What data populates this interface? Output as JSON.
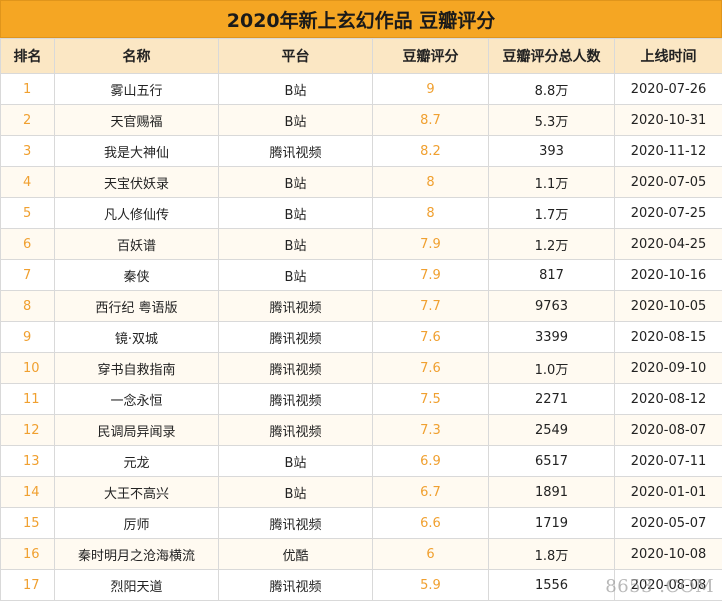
{
  "title": "2020年新上玄幻作品 豆瓣评分",
  "columns": [
    "排名",
    "名称",
    "平台",
    "豆瓣评分",
    "豆瓣评分总人数",
    "上线时间"
  ],
  "rows": [
    [
      "1",
      "雾山五行",
      "B站",
      "9",
      "8.8万",
      "2020-07-26"
    ],
    [
      "2",
      "天官赐福",
      "B站",
      "8.7",
      "5.3万",
      "2020-10-31"
    ],
    [
      "3",
      "我是大神仙",
      "腾讯视频",
      "8.2",
      "393",
      "2020-11-12"
    ],
    [
      "4",
      "天宝伏妖录",
      "B站",
      "8",
      "1.1万",
      "2020-07-05"
    ],
    [
      "5",
      "凡人修仙传",
      "B站",
      "8",
      "1.7万",
      "2020-07-25"
    ],
    [
      "6",
      "百妖谱",
      "B站",
      "7.9",
      "1.2万",
      "2020-04-25"
    ],
    [
      "7",
      "秦侠",
      "B站",
      "7.9",
      "817",
      "2020-10-16"
    ],
    [
      "8",
      "西行纪 粤语版",
      "腾讯视频",
      "7.7",
      "9763",
      "2020-10-05"
    ],
    [
      "9",
      "镜·双城",
      "腾讯视频",
      "7.6",
      "3399",
      "2020-08-15"
    ],
    [
      "10",
      "穿书自救指南",
      "腾讯视频",
      "7.6",
      "1.0万",
      "2020-09-10"
    ],
    [
      "11",
      "一念永恒",
      "腾讯视频",
      "7.5",
      "2271",
      "2020-08-12"
    ],
    [
      "12",
      "民调局异闻录",
      "腾讯视频",
      "7.3",
      "2549",
      "2020-08-07"
    ],
    [
      "13",
      "元龙",
      "B站",
      "6.9",
      "6517",
      "2020-07-11"
    ],
    [
      "14",
      "大王不高兴",
      "B站",
      "6.7",
      "1891",
      "2020-01-01"
    ],
    [
      "15",
      "厉师",
      "腾讯视频",
      "6.6",
      "1719",
      "2020-05-07"
    ],
    [
      "16",
      "秦时明月之沧海横流",
      "优酷",
      "6",
      "1.8万",
      "2020-10-08"
    ],
    [
      "17",
      "烈阳天道",
      "腾讯视频",
      "5.9",
      "1556",
      "2020-08-08"
    ]
  ],
  "watermark": "8653 .COM",
  "colors": {
    "title_bg": "#f5a623",
    "header_bg": "#fbe7c4",
    "accent_text": "#f0a030"
  }
}
